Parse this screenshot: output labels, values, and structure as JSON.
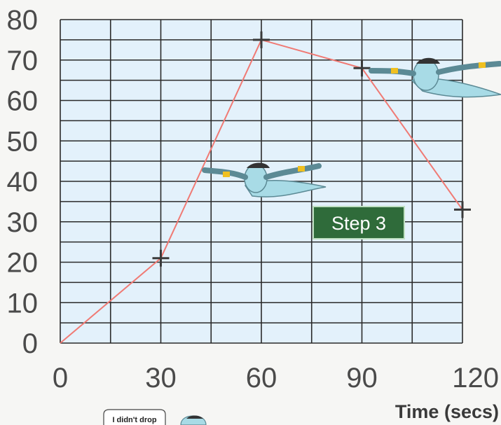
{
  "chart_data": {
    "type": "line",
    "x": [
      0,
      30,
      60,
      90,
      120
    ],
    "y": [
      0,
      21,
      75,
      68,
      33
    ],
    "xticks": [
      0,
      30,
      60,
      90,
      120
    ],
    "yticks": [
      0,
      10,
      20,
      30,
      40,
      50,
      60,
      70,
      80
    ],
    "xlim": [
      0,
      120
    ],
    "ylim": [
      0,
      80
    ],
    "xlabel": "Time (secs)",
    "ylabel": "",
    "grid": true,
    "line_color": "#f07a74",
    "grid_color": "#2a2a2a",
    "plot_background": "#e3f1fb",
    "marker": "plus"
  },
  "annotation": {
    "badge_label": "Step 3",
    "badge_color": "#2f6b3a"
  },
  "speech_bubble": {
    "text": "I didn't drop"
  },
  "decorations": [
    "genie-icon",
    "genie-icon",
    "genie-icon"
  ]
}
